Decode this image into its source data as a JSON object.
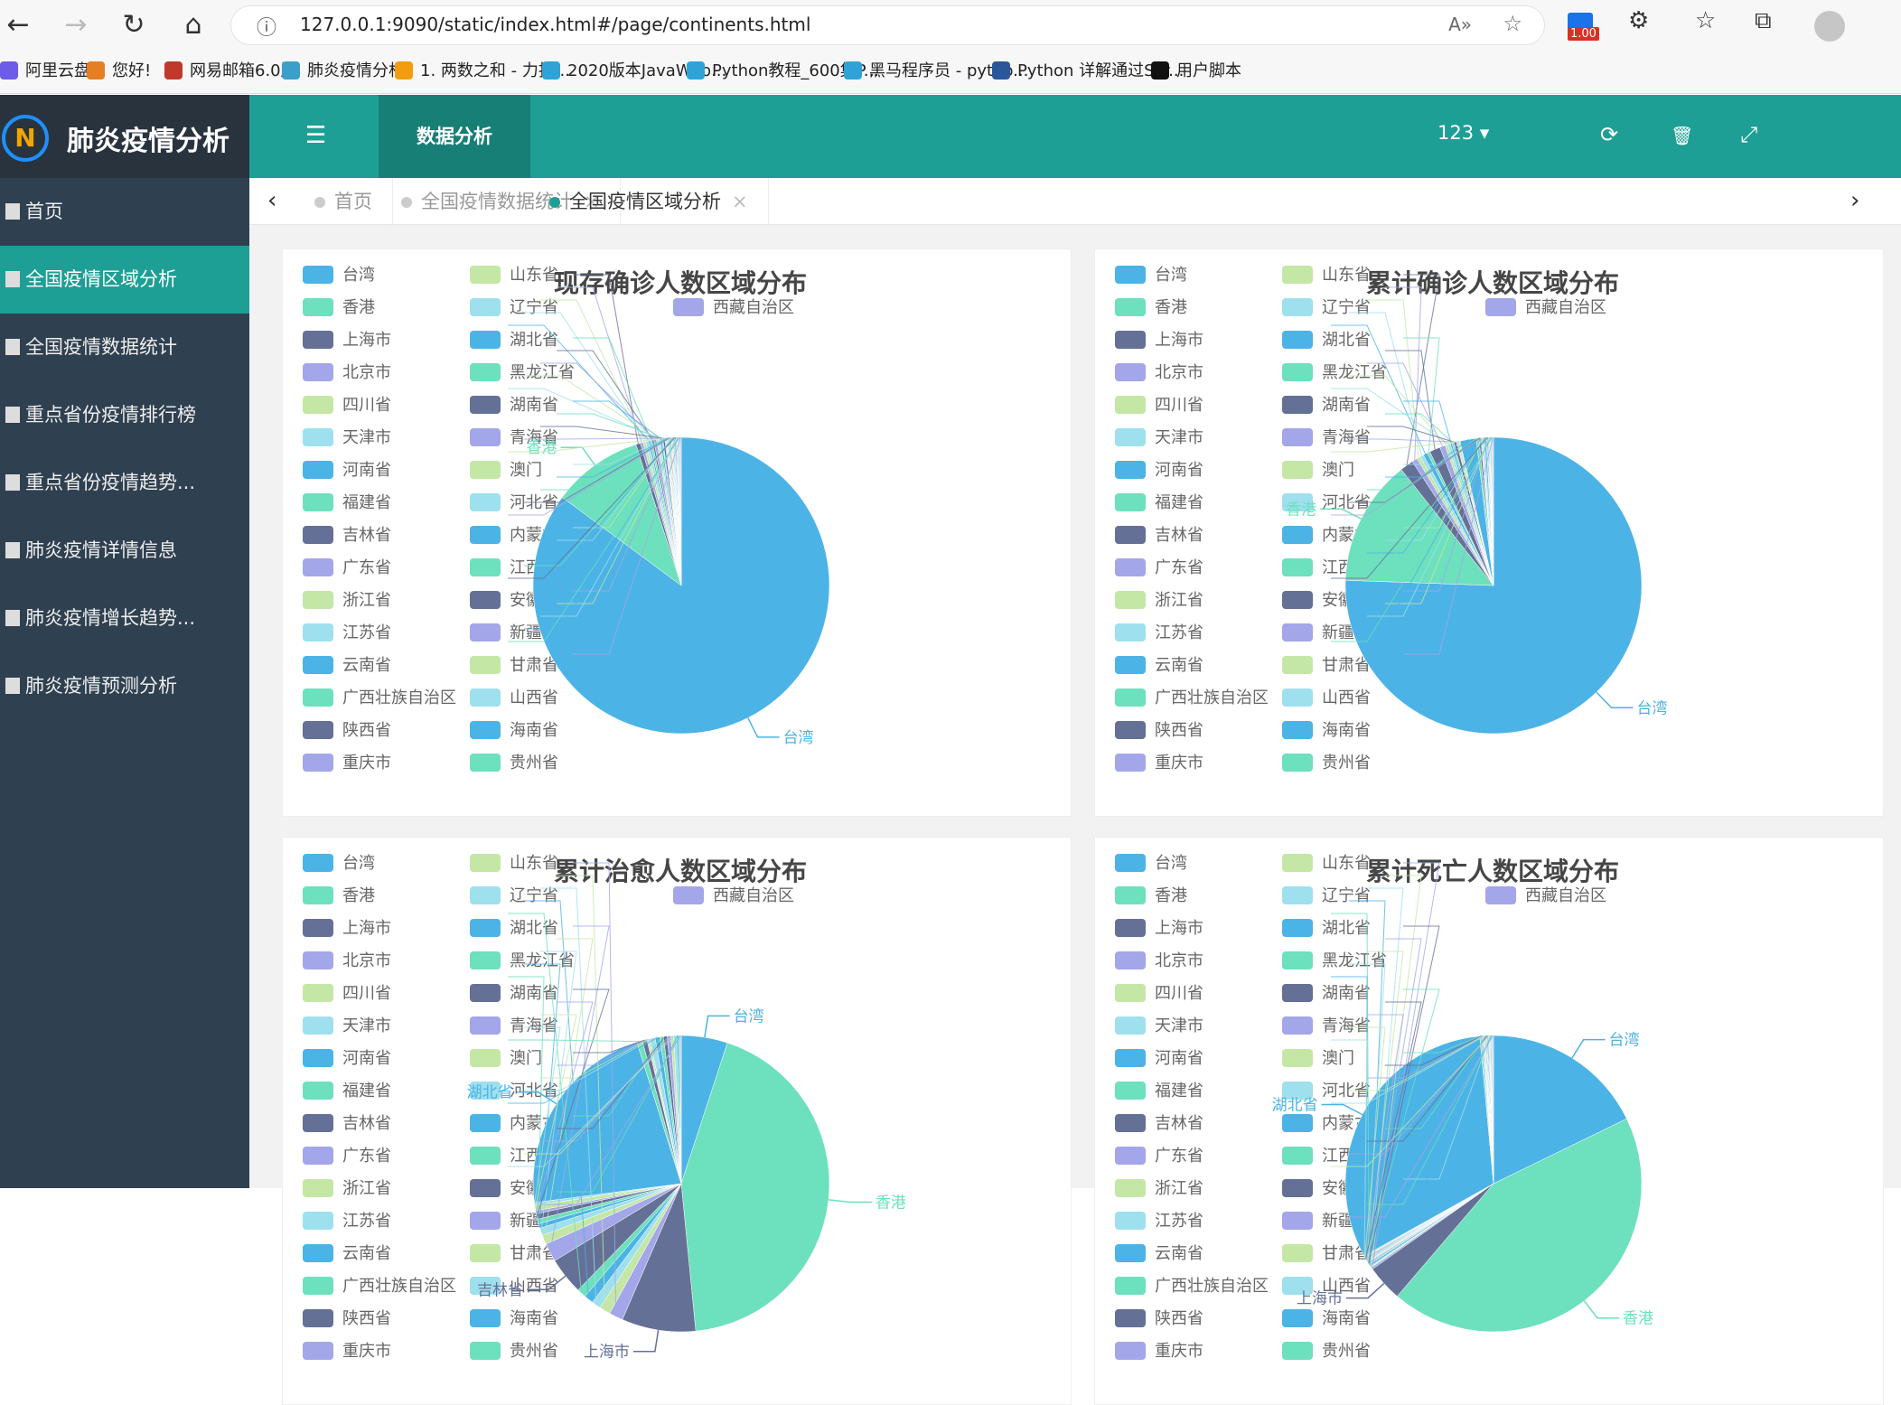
{
  "browser": {
    "back_icon": "←",
    "forward_icon": "→",
    "refresh_icon": "↻",
    "home_icon": "⌂",
    "info_icon": "ⓘ",
    "url": "127.0.0.1:9090/static/index.html#/page/continents.html",
    "read_aloud_icon": "A»",
    "favorite_icon": "☆",
    "ext_badge": "1.00",
    "ext_icon": "⚙",
    "fav_bar_icon": "☆",
    "collections_icon": "⧉",
    "bookmarks": [
      {
        "label": "阿里云盘",
        "color": "#6c5ce7"
      },
      {
        "label": "您好!",
        "color": "#e67e22"
      },
      {
        "label": "网易邮箱6.0版",
        "color": "#c0392b"
      },
      {
        "label": "肺炎疫情分析",
        "color": "#3aa0c9"
      },
      {
        "label": "1. 两数之和 - 力扣...",
        "color": "#f39c12"
      },
      {
        "label": "2020版本JavaWeb...",
        "color": "#2fa3d8"
      },
      {
        "label": "Python教程_600集P...",
        "color": "#2fa3d8"
      },
      {
        "label": "黑马程序员 - pytho...",
        "color": "#2fa3d8"
      },
      {
        "label": "Python 详解通过Scr...",
        "color": "#2b579a"
      },
      {
        "label": "用户脚本",
        "color": "#111111"
      }
    ]
  },
  "app": {
    "logo_text": "肺炎疫情分析",
    "logo_mark": "N",
    "menu": [
      {
        "label": "首页",
        "active": false
      },
      {
        "label": "全国疫情区域分析",
        "active": true
      },
      {
        "label": "全国疫情数据统计",
        "active": false
      },
      {
        "label": "重点省份疫情排行榜",
        "active": false
      },
      {
        "label": "重点省份疫情趋势...",
        "active": false
      },
      {
        "label": "肺炎疫情详情信息",
        "active": false
      },
      {
        "label": "肺炎疫情增长趋势...",
        "active": false
      },
      {
        "label": "肺炎疫情预测分析",
        "active": false
      }
    ],
    "topbar": {
      "menu_icon": "☰",
      "active_tab": "数据分析",
      "refresh_icon": "⟳",
      "delete_icon": "🗑",
      "fullscreen_icon": "⤢",
      "user": "123 ▾"
    },
    "tabs": [
      {
        "label": "首页",
        "active": false,
        "closable": false
      },
      {
        "label": "全国疫情数据统计",
        "active": false,
        "closable": true
      },
      {
        "label": "全国疫情区域分析",
        "active": true,
        "closable": true
      }
    ],
    "tab_left": "‹",
    "tab_right": "›",
    "tab_close": "×"
  },
  "legend_items": [
    "台湾",
    "香港",
    "上海市",
    "北京市",
    "四川省",
    "天津市",
    "河南省",
    "福建省",
    "吉林省",
    "广东省",
    "浙江省",
    "江苏省",
    "云南省",
    "广西壮族自治区",
    "陕西省",
    "重庆市",
    "山东省",
    "辽宁省",
    "湖北省",
    "黑龙江省",
    "湖南省",
    "青海省",
    "澳门",
    "河北省",
    "内蒙古自治区",
    "江西省",
    "安徽省",
    "新疆维吾尔自治区",
    "甘肃省",
    "山西省",
    "海南省",
    "贵州省",
    "西藏自治区"
  ],
  "legend_colors": [
    "#4cb3e6",
    "#6de0bd",
    "#657096",
    "#a3a6e8",
    "#c4e7a6",
    "#9ee0ee",
    "#4cb3e6",
    "#6de0bd",
    "#657096",
    "#a3a6e8",
    "#c4e7a6",
    "#9ee0ee",
    "#4cb3e6",
    "#6de0bd",
    "#657096",
    "#a3a6e8",
    "#c4e7a6",
    "#9ee0ee",
    "#4cb3e6",
    "#6de0bd",
    "#657096",
    "#a3a6e8",
    "#c4e7a6",
    "#9ee0ee",
    "#4cb3e6",
    "#6de0bd",
    "#657096",
    "#a3a6e8",
    "#c4e7a6",
    "#9ee0ee",
    "#4cb3e6",
    "#6de0bd",
    "#a3a6e8"
  ],
  "chart_data": [
    {
      "type": "pie",
      "title": "现存确诊人数区域分布",
      "slices": [
        {
          "name": "台湾",
          "value": 86
        },
        {
          "name": "香港",
          "value": 10
        },
        {
          "name": "上海市",
          "value": 0.5
        },
        {
          "name": "北京市",
          "value": 0.3
        },
        {
          "name": "四川省",
          "value": 0.3
        },
        {
          "name": "天津市",
          "value": 0.3
        },
        {
          "name": "河南省",
          "value": 0.2
        },
        {
          "name": "福建省",
          "value": 0.2
        },
        {
          "name": "吉林省",
          "value": 0.2
        },
        {
          "name": "广东省",
          "value": 0.3
        },
        {
          "name": "浙江省",
          "value": 0.2
        },
        {
          "name": "江苏省",
          "value": 0.2
        },
        {
          "name": "云南省",
          "value": 0.2
        },
        {
          "name": "广西壮族自治区",
          "value": 0.1
        },
        {
          "name": "陕西省",
          "value": 0.2
        },
        {
          "name": "重庆市",
          "value": 0.1
        },
        {
          "name": "山东省",
          "value": 0.1
        },
        {
          "name": "辽宁省",
          "value": 0.1
        },
        {
          "name": "湖北省",
          "value": 0.1
        },
        {
          "name": "黑龙江省",
          "value": 0.1
        },
        {
          "name": "湖南省",
          "value": 0.1
        },
        {
          "name": "青海省",
          "value": 0.1
        },
        {
          "name": "澳门",
          "value": 0.1
        },
        {
          "name": "河北省",
          "value": 0.1
        },
        {
          "name": "内蒙古自治区",
          "value": 0.1
        },
        {
          "name": "江西省",
          "value": 0.1
        },
        {
          "name": "安徽省",
          "value": 0.1
        },
        {
          "name": "新疆维吾尔自治区",
          "value": 0.1
        },
        {
          "name": "甘肃省",
          "value": 0.1
        },
        {
          "name": "山西省",
          "value": 0.1
        },
        {
          "name": "海南省",
          "value": 0.1
        },
        {
          "name": "贵州省",
          "value": 0.1
        },
        {
          "name": "西藏自治区",
          "value": 0.1
        }
      ]
    },
    {
      "type": "pie",
      "title": "累计确诊人数区域分布",
      "slices": [
        {
          "name": "台湾",
          "value": 77
        },
        {
          "name": "香港",
          "value": 14
        },
        {
          "name": "上海市",
          "value": 1.5
        },
        {
          "name": "北京市",
          "value": 0.6
        },
        {
          "name": "四川省",
          "value": 0.4
        },
        {
          "name": "天津市",
          "value": 0.4
        },
        {
          "name": "河南省",
          "value": 0.5
        },
        {
          "name": "福建省",
          "value": 0.3
        },
        {
          "name": "吉林省",
          "value": 1.2
        },
        {
          "name": "广东省",
          "value": 0.6
        },
        {
          "name": "浙江省",
          "value": 0.3
        },
        {
          "name": "江苏省",
          "value": 0.3
        },
        {
          "name": "云南省",
          "value": 0.2
        },
        {
          "name": "广西壮族自治区",
          "value": 0.2
        },
        {
          "name": "陕西省",
          "value": 0.3
        },
        {
          "name": "重庆市",
          "value": 0.1
        },
        {
          "name": "山东省",
          "value": 0.2
        },
        {
          "name": "辽宁省",
          "value": 0.1
        },
        {
          "name": "湖北省",
          "value": 1.8
        },
        {
          "name": "黑龙江省",
          "value": 0.3
        },
        {
          "name": "湖南省",
          "value": 0.2
        },
        {
          "name": "青海省",
          "value": 0.1
        },
        {
          "name": "澳门",
          "value": 0.1
        },
        {
          "name": "河北省",
          "value": 0.2
        },
        {
          "name": "内蒙古自治区",
          "value": 0.2
        },
        {
          "name": "江西省",
          "value": 0.1
        },
        {
          "name": "安徽省",
          "value": 0.1
        },
        {
          "name": "新疆维吾尔自治区",
          "value": 0.1
        },
        {
          "name": "甘肃省",
          "value": 0.1
        },
        {
          "name": "山西省",
          "value": 0.1
        },
        {
          "name": "海南省",
          "value": 0.1
        },
        {
          "name": "贵州省",
          "value": 0.1
        },
        {
          "name": "西藏自治区",
          "value": 0.1
        }
      ]
    },
    {
      "type": "pie",
      "title": "累计治愈人数区域分布",
      "slices": [
        {
          "name": "台湾",
          "value": 5
        },
        {
          "name": "香港",
          "value": 43
        },
        {
          "name": "上海市",
          "value": 8
        },
        {
          "name": "北京市",
          "value": 1.5
        },
        {
          "name": "四川省",
          "value": 1.2
        },
        {
          "name": "天津市",
          "value": 1
        },
        {
          "name": "河南省",
          "value": 1
        },
        {
          "name": "福建省",
          "value": 1
        },
        {
          "name": "吉林省",
          "value": 4
        },
        {
          "name": "广东省",
          "value": 2
        },
        {
          "name": "浙江省",
          "value": 1
        },
        {
          "name": "江苏省",
          "value": 0.8
        },
        {
          "name": "云南省",
          "value": 0.5
        },
        {
          "name": "广西壮族自治区",
          "value": 0.5
        },
        {
          "name": "陕西省",
          "value": 0.6
        },
        {
          "name": "重庆市",
          "value": 0.3
        },
        {
          "name": "山东省",
          "value": 0.6
        },
        {
          "name": "辽宁省",
          "value": 0.3
        },
        {
          "name": "湖北省",
          "value": 22
        },
        {
          "name": "黑龙江省",
          "value": 0.6
        },
        {
          "name": "湖南省",
          "value": 0.5
        },
        {
          "name": "青海省",
          "value": 0.1
        },
        {
          "name": "澳门",
          "value": 0.2
        },
        {
          "name": "河北省",
          "value": 0.6
        },
        {
          "name": "内蒙古自治区",
          "value": 0.5
        },
        {
          "name": "江西省",
          "value": 0.4
        },
        {
          "name": "安徽省",
          "value": 0.4
        },
        {
          "name": "新疆维吾尔自治区",
          "value": 0.4
        },
        {
          "name": "甘肃省",
          "value": 0.3
        },
        {
          "name": "山西省",
          "value": 0.3
        },
        {
          "name": "海南省",
          "value": 0.2
        },
        {
          "name": "贵州省",
          "value": 0.2
        },
        {
          "name": "西藏自治区",
          "value": 0.1
        }
      ]
    },
    {
      "type": "pie",
      "title": "累计死亡人数区域分布",
      "slices": [
        {
          "name": "台湾",
          "value": 18
        },
        {
          "name": "香港",
          "value": 44
        },
        {
          "name": "上海市",
          "value": 4
        },
        {
          "name": "北京市",
          "value": 0.2
        },
        {
          "name": "四川省",
          "value": 0.1
        },
        {
          "name": "天津市",
          "value": 0.1
        },
        {
          "name": "河南省",
          "value": 0.2
        },
        {
          "name": "福建省",
          "value": 0.1
        },
        {
          "name": "吉林省",
          "value": 0.1
        },
        {
          "name": "广东省",
          "value": 0.1
        },
        {
          "name": "浙江省",
          "value": 0.1
        },
        {
          "name": "江苏省",
          "value": 0.1
        },
        {
          "name": "云南省",
          "value": 0.1
        },
        {
          "name": "广西壮族自治区",
          "value": 0.1
        },
        {
          "name": "陕西省",
          "value": 0.1
        },
        {
          "name": "重庆市",
          "value": 0.1
        },
        {
          "name": "山东省",
          "value": 0.1
        },
        {
          "name": "辽宁省",
          "value": 0.1
        },
        {
          "name": "湖北省",
          "value": 32
        },
        {
          "name": "黑龙江省",
          "value": 0.2
        },
        {
          "name": "湖南省",
          "value": 0.1
        },
        {
          "name": "青海省",
          "value": 0.1
        },
        {
          "name": "澳门",
          "value": 0.1
        },
        {
          "name": "河北省",
          "value": 0.1
        },
        {
          "name": "内蒙古自治区",
          "value": 0.1
        },
        {
          "name": "江西省",
          "value": 0.1
        },
        {
          "name": "安徽省",
          "value": 0.1
        },
        {
          "name": "新疆维吾尔自治区",
          "value": 0.1
        },
        {
          "name": "甘肃省",
          "value": 0.1
        },
        {
          "name": "山西省",
          "value": 0.1
        },
        {
          "name": "海南省",
          "value": 0.1
        },
        {
          "name": "贵州省",
          "value": 0.1
        },
        {
          "name": "西藏自治区",
          "value": 0.1
        }
      ]
    }
  ]
}
